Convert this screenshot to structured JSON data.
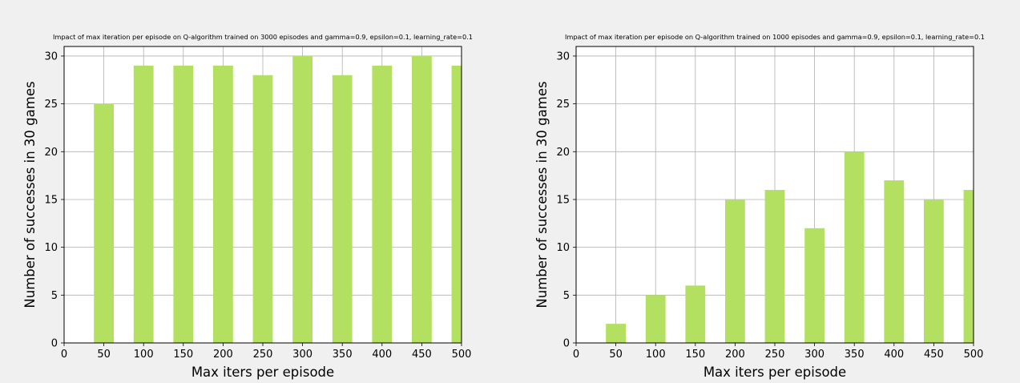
{
  "figure": {
    "background": "#f0f0f0"
  },
  "chart_data": [
    {
      "type": "bar",
      "title": "Impact of max iteration per episode on Q-algorithm trained on 3000 episodes and gamma=0.9, epsilon=0.1, learning_rate=0.1",
      "xlabel": "Max iters per episode",
      "ylabel": "Number of successes in 30 games",
      "xlim": [
        0,
        500
      ],
      "ylim": [
        0,
        31
      ],
      "bar_width": 25,
      "xticks": [
        0,
        50,
        100,
        150,
        200,
        250,
        300,
        350,
        400,
        450,
        500
      ],
      "yticks": [
        0,
        5,
        10,
        15,
        20,
        25,
        30
      ],
      "grid": true,
      "color": "#b3e061",
      "x": [
        50,
        100,
        150,
        200,
        250,
        300,
        350,
        400,
        450,
        500
      ],
      "values": [
        25,
        29,
        29,
        29,
        28,
        30,
        28,
        29,
        30,
        29
      ]
    },
    {
      "type": "bar",
      "title": "Impact of max iteration per episode on Q-algorithm trained on 1000 episodes and gamma=0.9, epsilon=0.1, learning_rate=0.1",
      "xlabel": "Max iters per episode",
      "ylabel": "Number of successes in 30 games",
      "xlim": [
        0,
        500
      ],
      "ylim": [
        0,
        31
      ],
      "bar_width": 25,
      "xticks": [
        0,
        50,
        100,
        150,
        200,
        250,
        300,
        350,
        400,
        450,
        500
      ],
      "yticks": [
        0,
        5,
        10,
        15,
        20,
        25,
        30
      ],
      "grid": true,
      "color": "#b3e061",
      "x": [
        50,
        100,
        150,
        200,
        250,
        300,
        350,
        400,
        450,
        500
      ],
      "values": [
        2,
        5,
        6,
        15,
        16,
        12,
        20,
        17,
        15,
        16
      ]
    }
  ]
}
